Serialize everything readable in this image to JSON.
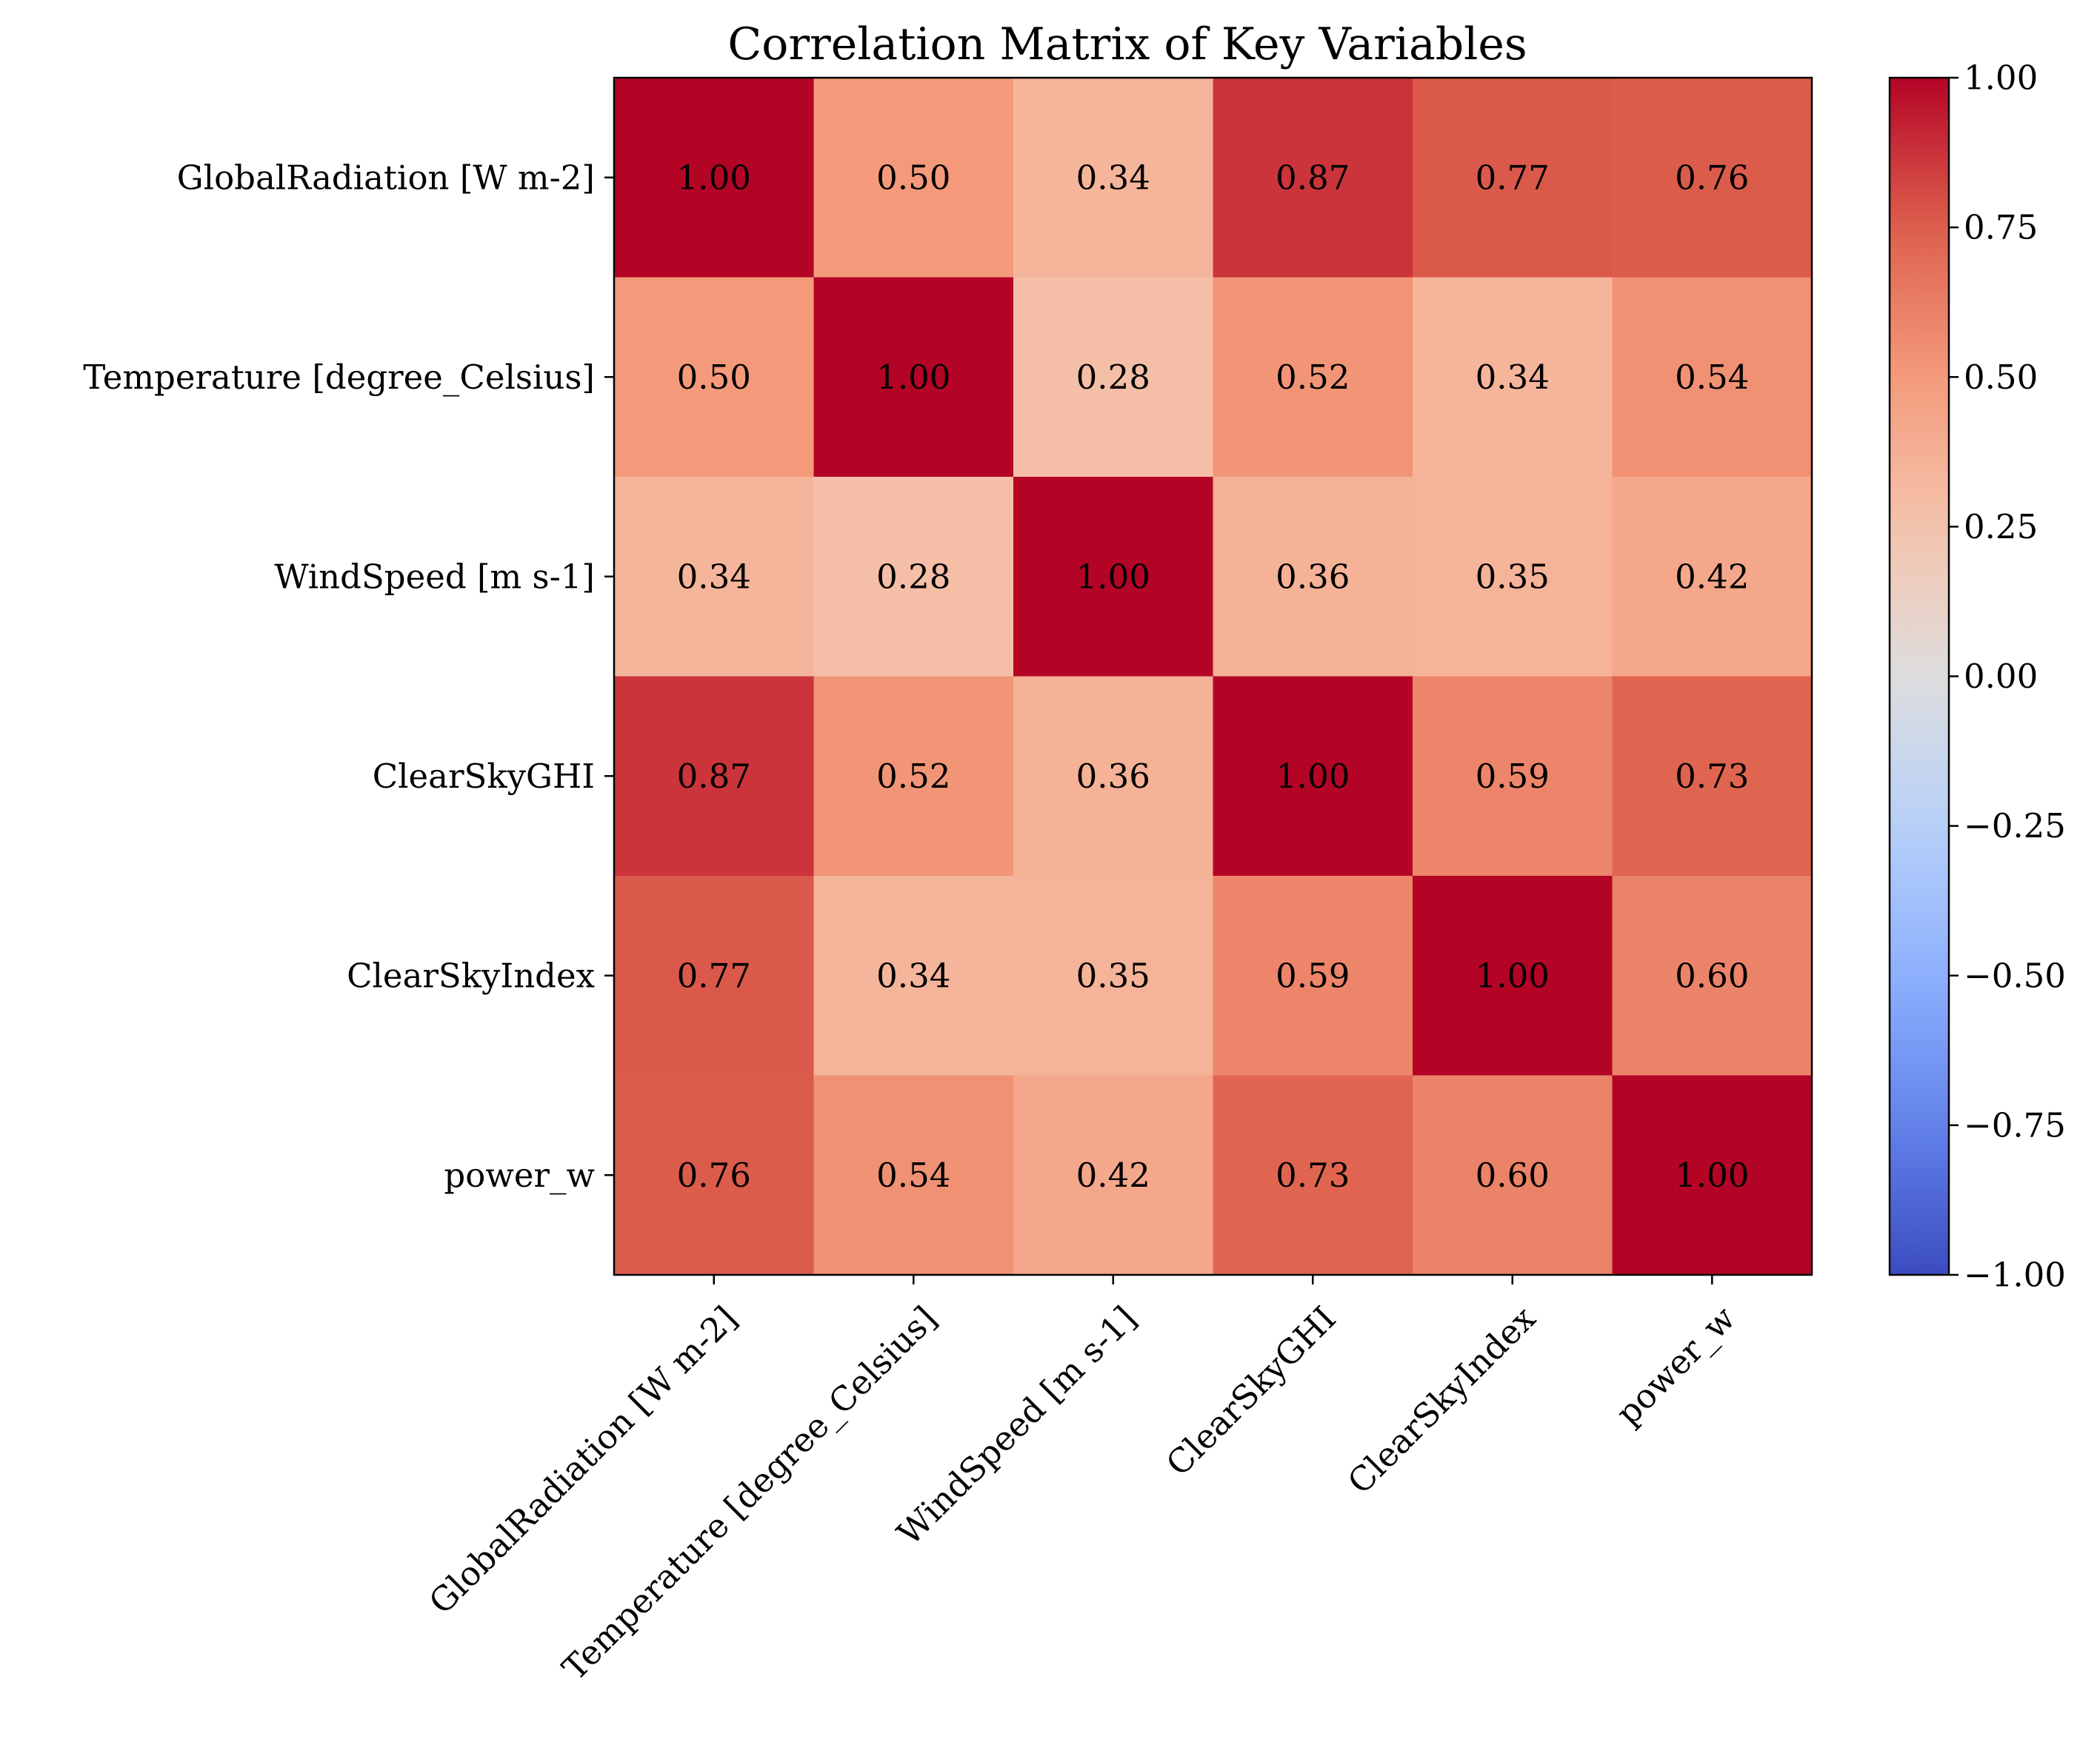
{
  "chart_data": {
    "type": "heatmap",
    "title": "Correlation Matrix of Key Variables",
    "variables": [
      "GlobalRadiation [W m-2]",
      "Temperature [degree_Celsius]",
      "WindSpeed [m s-1]",
      "ClearSkyGHI",
      "ClearSkyIndex",
      "power_w"
    ],
    "values": [
      [
        1.0,
        0.5,
        0.34,
        0.87,
        0.77,
        0.76
      ],
      [
        0.5,
        1.0,
        0.28,
        0.52,
        0.34,
        0.54
      ],
      [
        0.34,
        0.28,
        1.0,
        0.36,
        0.35,
        0.42
      ],
      [
        0.87,
        0.52,
        0.36,
        1.0,
        0.59,
        0.73
      ],
      [
        0.77,
        0.34,
        0.35,
        0.59,
        1.0,
        0.6
      ],
      [
        0.76,
        0.54,
        0.42,
        0.73,
        0.6,
        1.0
      ]
    ],
    "value_format_decimals": 2,
    "colormap": "coolwarm",
    "color_range": [
      -1.0,
      1.0
    ],
    "colorbar_ticks": [
      1.0,
      0.75,
      0.5,
      0.25,
      0.0,
      -0.25,
      -0.5,
      -0.75,
      -1.0
    ],
    "colorbar_tick_labels": [
      "1.00",
      "0.75",
      "0.50",
      "0.25",
      "0.00",
      "−0.25",
      "−0.50",
      "−0.75",
      "−1.00"
    ],
    "colorbar_placement": "right",
    "x_tick_rotation_deg": 45,
    "grid": false
  }
}
